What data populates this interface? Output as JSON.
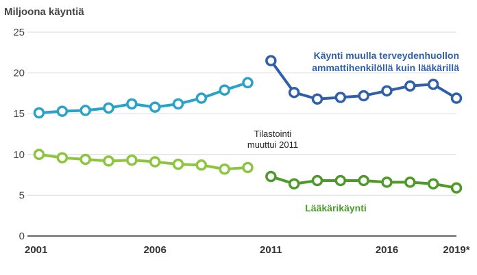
{
  "chart_data": {
    "type": "line",
    "ylabel": "Miljoona käyntiä",
    "ylim": [
      0,
      25
    ],
    "yticks": [
      "0",
      "5",
      "10",
      "15",
      "20",
      "25"
    ],
    "xticks": [
      "2001",
      "2006",
      "2011",
      "2016",
      "2019*"
    ],
    "grid": true,
    "annotation": [
      "Tilastointi",
      "muuttui 2011"
    ],
    "series": [
      {
        "name_lines": [
          "Käynti muulla terveydenhuollon",
          "ammattihenkilöllä kuin lääkärillä"
        ],
        "color": "#2e5fa8",
        "segments": [
          {
            "x": [
              2001,
              2002,
              2003,
              2004,
              2005,
              2006,
              2007,
              2008,
              2009,
              2010
            ],
            "y": [
              15.1,
              15.3,
              15.4,
              15.7,
              16.2,
              15.8,
              16.2,
              16.9,
              17.9,
              18.8
            ]
          },
          {
            "x": [
              2011,
              2012,
              2013,
              2014,
              2015,
              2016,
              2017,
              2018,
              2019
            ],
            "y": [
              21.5,
              17.6,
              16.8,
              17.0,
              17.2,
              17.8,
              18.4,
              18.6,
              16.9
            ]
          }
        ],
        "segment_colors": [
          "#2aa3c8",
          "#2e5fa8"
        ]
      },
      {
        "name_lines": [
          "Lääkärikäynti"
        ],
        "color": "#4d9a2a",
        "segments": [
          {
            "x": [
              2001,
              2002,
              2003,
              2004,
              2005,
              2006,
              2007,
              2008,
              2009,
              2010
            ],
            "y": [
              10.0,
              9.6,
              9.4,
              9.2,
              9.3,
              9.1,
              8.8,
              8.7,
              8.2,
              8.4
            ]
          },
          {
            "x": [
              2011,
              2012,
              2013,
              2014,
              2015,
              2016,
              2017,
              2018,
              2019
            ],
            "y": [
              7.3,
              6.4,
              6.8,
              6.8,
              6.8,
              6.6,
              6.6,
              6.4,
              5.9
            ]
          }
        ],
        "segment_colors": [
          "#8cc63f",
          "#4d9a2a"
        ]
      }
    ]
  }
}
